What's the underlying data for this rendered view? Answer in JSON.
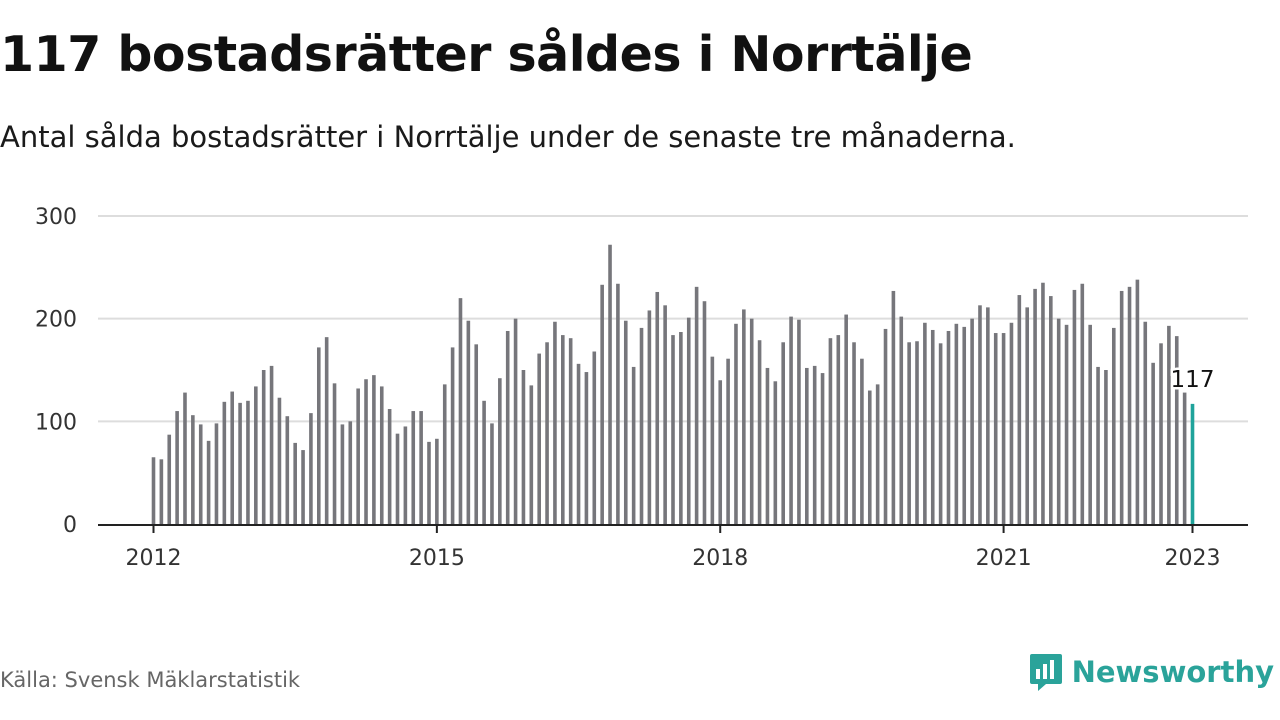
{
  "colors": {
    "bar": "#76767b",
    "highlight": "#1fa39b",
    "grid": "#dddddd",
    "axis": "#222222",
    "brand": "#2aa39a"
  },
  "source": "Källa: Svensk Mäklarstatistik",
  "brand": {
    "name": "Newsworthy",
    "icon": "newsworthy-logo-icon"
  },
  "chart_data": {
    "type": "bar",
    "title": "117 bostadsrätter såldes i Norrtälje",
    "subtitle": "Antal sålda bostadsrätter i Norrtälje under de senaste tre månaderna.",
    "xlabel": "",
    "ylabel": "",
    "ylim": [
      0,
      300
    ],
    "yticks": [
      "0",
      "100",
      "200",
      "300"
    ],
    "xticks": [
      "2012",
      "2015",
      "2018",
      "2021",
      "2023"
    ],
    "grid": true,
    "x_range": [
      "2012-01",
      "2023-01"
    ],
    "x_start": "2012-01",
    "frequency": "monthly",
    "highlight": {
      "x": "2023-01",
      "value": 117,
      "label": "117"
    },
    "values": [
      65,
      63,
      87,
      110,
      128,
      106,
      97,
      81,
      98,
      119,
      129,
      118,
      120,
      134,
      150,
      154,
      123,
      105,
      79,
      72,
      108,
      172,
      182,
      137,
      97,
      100,
      132,
      141,
      145,
      134,
      112,
      88,
      95,
      110,
      110,
      80,
      83,
      136,
      172,
      220,
      198,
      175,
      120,
      98,
      142,
      188,
      200,
      150,
      135,
      166,
      177,
      197,
      184,
      181,
      156,
      148,
      168,
      233,
      272,
      234,
      198,
      153,
      191,
      208,
      226,
      213,
      184,
      187,
      201,
      231,
      217,
      163,
      140,
      161,
      195,
      209,
      200,
      179,
      152,
      139,
      177,
      202,
      199,
      152,
      154,
      147,
      181,
      184,
      204,
      177,
      161,
      130,
      136,
      190,
      227,
      202,
      177,
      178,
      196,
      189,
      176,
      188,
      195,
      192,
      200,
      213,
      211,
      186,
      186,
      196,
      223,
      211,
      229,
      235,
      222,
      200,
      194,
      228,
      234,
      194,
      153,
      150,
      191,
      227,
      231,
      238,
      197,
      157,
      176,
      193,
      183,
      128,
      117
    ]
  }
}
